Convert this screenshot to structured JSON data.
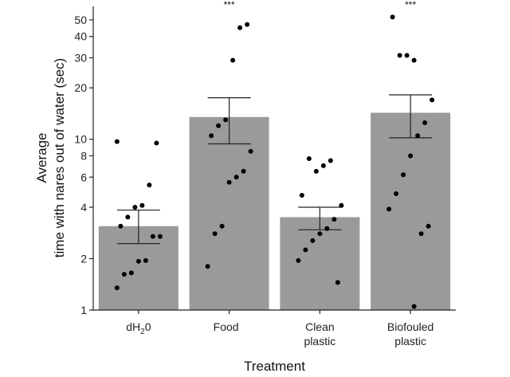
{
  "chart_data": {
    "type": "bar",
    "yscale": "log",
    "ylim": [
      1,
      60
    ],
    "yticks": [
      1,
      2,
      4,
      6,
      8,
      10,
      20,
      30,
      40,
      50
    ],
    "ylabel_line1": "Average",
    "ylabel_line2": "time with nares out of water (sec)",
    "xlabel": "Treatment",
    "categories": [
      {
        "lines": [
          "dH",
          "2",
          "0"
        ],
        "subscript": true
      },
      {
        "lines": [
          "Food"
        ]
      },
      {
        "lines": [
          "Clean",
          "plastic"
        ]
      },
      {
        "lines": [
          "Biofouled",
          "plastic"
        ]
      }
    ],
    "values": [
      3.1,
      13.5,
      3.5,
      14.3
    ],
    "error_low": [
      2.45,
      9.4,
      2.95,
      10.2
    ],
    "error_high": [
      3.85,
      17.5,
      4.0,
      18.2
    ],
    "significance": [
      "",
      "***",
      "",
      "***"
    ],
    "points": [
      [
        9.7,
        9.5,
        5.4,
        4.1,
        4.0,
        3.5,
        3.1,
        2.7,
        2.7,
        1.95,
        1.93,
        1.65,
        1.62,
        1.35
      ],
      [
        47,
        45,
        29,
        13,
        12,
        10.5,
        8.5,
        6.5,
        6.0,
        5.6,
        3.1,
        2.8,
        1.8
      ],
      [
        7.5,
        7.0,
        6.5,
        7.7,
        4.7,
        4.1,
        3.4,
        3.0,
        2.8,
        2.55,
        2.25,
        1.95,
        1.45
      ],
      [
        29,
        31,
        31,
        52,
        17,
        12.5,
        10.5,
        8.0,
        6.2,
        4.8,
        3.9,
        3.1,
        2.8,
        1.05
      ]
    ],
    "colors": {
      "bar": "#9a9a9a",
      "point": "#000000",
      "error": "#222222",
      "axis": "#222222"
    }
  }
}
